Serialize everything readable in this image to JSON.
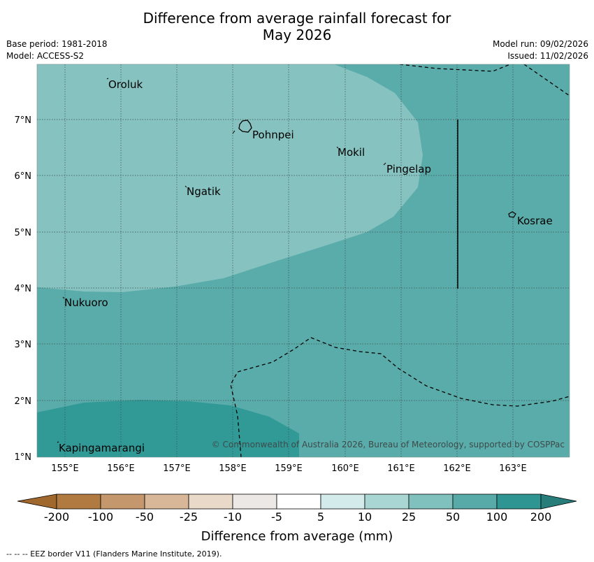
{
  "title_line1": "Difference from average rainfall forecast for",
  "title_line2": "May 2026",
  "meta_left": [
    "Base period: 1981-2018",
    "Model: ACCESS-S2"
  ],
  "meta_right": [
    "Model run: 09/02/2026",
    "Issued: 11/02/2026"
  ],
  "map": {
    "lon_ticks": [
      "155°E",
      "156°E",
      "157°E",
      "158°E",
      "159°E",
      "160°E",
      "161°E",
      "162°E",
      "163°E"
    ],
    "lat_ticks": [
      "7°N",
      "6°N",
      "5°N",
      "4°N",
      "3°N",
      "2°N",
      "1°N"
    ],
    "places": [
      "Oroluk",
      "Pohnpei",
      "Mokil",
      "Pingelap",
      "Ngatik",
      "Kosrae",
      "Nukuoro",
      "Kapingamarangi"
    ],
    "copyright": "© Commonwealth of Australia 2026, Bureau of Meteorology, supported by COSPPac"
  },
  "colorbar": {
    "labels": [
      "-200",
      "-100",
      "-50",
      "-25",
      "-10",
      "-5",
      "5",
      "10",
      "25",
      "50",
      "100",
      "200"
    ],
    "colors": [
      "#a0682d",
      "#b07a40",
      "#c4976c",
      "#d7b798",
      "#e8d9c9",
      "#ece8e6",
      "#ffffff",
      "#d3eceb",
      "#a9d6d3",
      "#80c0bd",
      "#58aaa8",
      "#2e9592",
      "#267d7a"
    ],
    "title": "Difference from average (mm)"
  },
  "footer": "--  --  -- EEZ border V11 (Flanders Marine Institute, 2019)."
}
